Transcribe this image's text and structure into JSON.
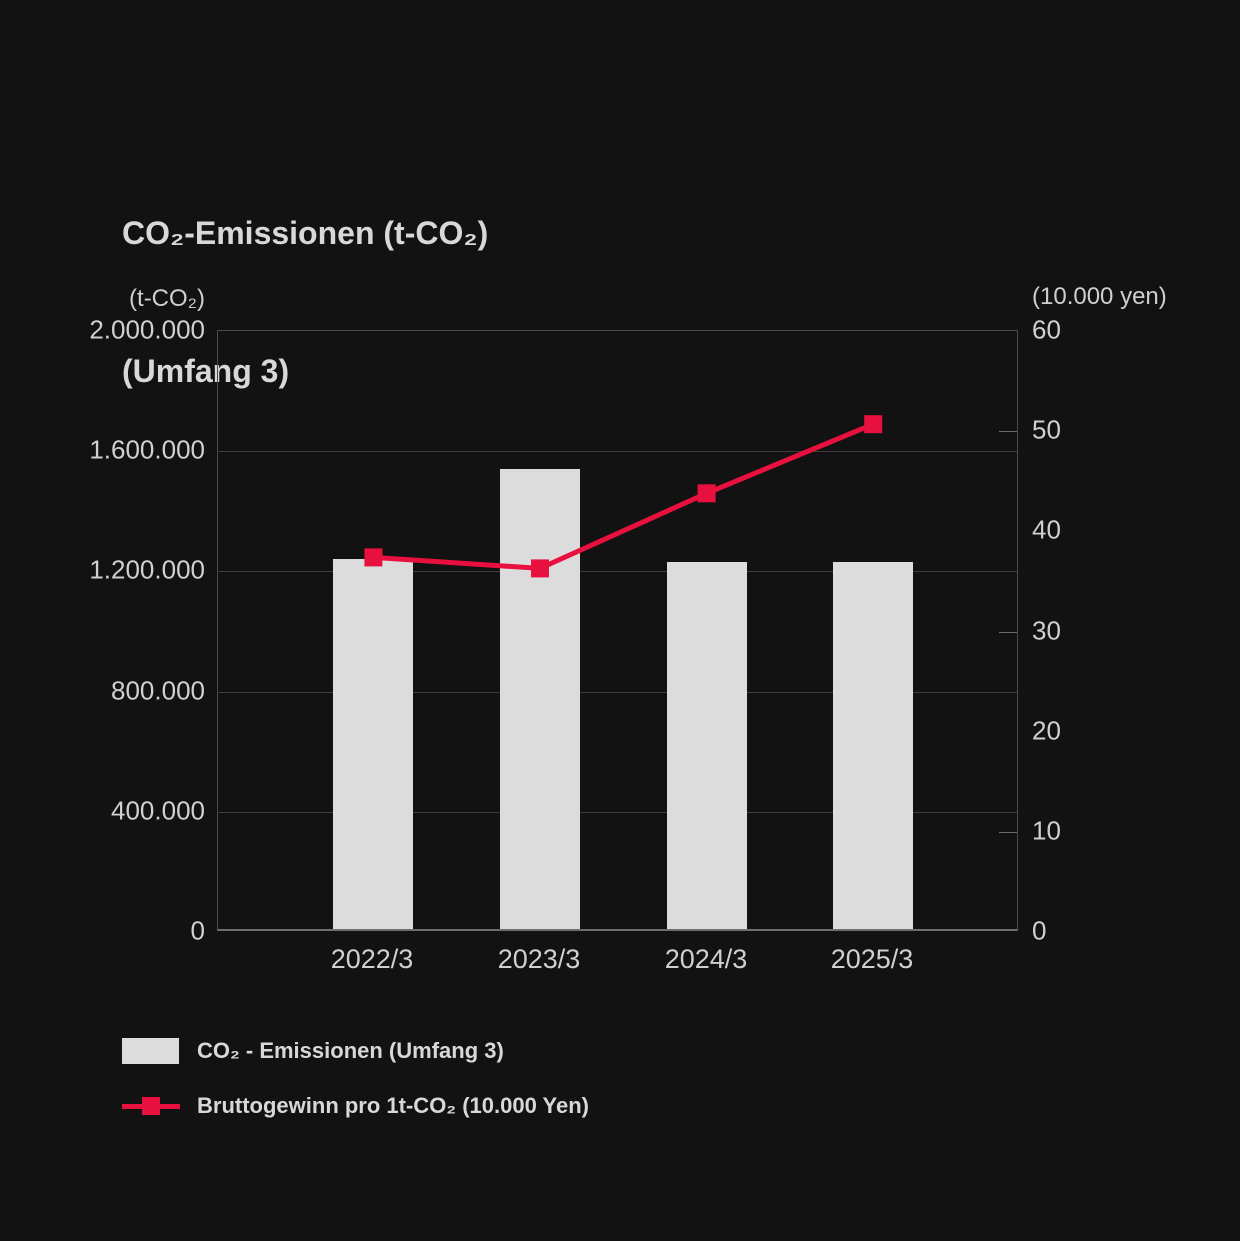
{
  "page": {
    "background": "#121212",
    "text_color": "#d4d4d4"
  },
  "title": {
    "line1": "CO₂-Emissionen (t-CO₂)",
    "line2": "(Umfang 3)"
  },
  "chart_data": {
    "type": "bar",
    "title": "CO₂-Emissionen (t-CO₂) (Umfang 3)",
    "categories": [
      "2022/3",
      "2023/3",
      "2024/3",
      "2025/3"
    ],
    "series": [
      {
        "name": "CO₂ - Emissionen (Umfang 3)",
        "type": "bar",
        "axis": "left",
        "values": [
          1230000,
          1530000,
          1220000,
          1220000
        ],
        "color": "#dcdcdc"
      },
      {
        "name": "Bruttogewinn pro 1t-CO₂ (10.000 Yen)",
        "type": "line",
        "axis": "right",
        "values": [
          37.4,
          36.3,
          43.8,
          50.7
        ],
        "color": "#e8103f",
        "marker": "square"
      }
    ],
    "left_axis": {
      "unit_label": "(t-CO₂)",
      "tick_labels": [
        "0",
        "400.000",
        "800.000",
        "1.200.000",
        "1.600.000",
        "2.000.000"
      ],
      "tick_values": [
        0,
        400000,
        800000,
        1200000,
        1600000,
        2000000
      ],
      "min": 0,
      "max": 2000000
    },
    "right_axis": {
      "unit_label": "(10.000 yen)",
      "tick_labels": [
        "0",
        "10",
        "20",
        "30",
        "40",
        "50",
        "60"
      ],
      "tick_values": [
        0,
        10,
        20,
        30,
        40,
        50,
        60
      ],
      "minor_tick_values": [
        10,
        30,
        50
      ],
      "min": 0,
      "max": 60
    },
    "grid": "horizontal gridlines at left-axis ticks",
    "legend_position": "bottom-left"
  },
  "legend": {
    "items": [
      {
        "swatch": "bar",
        "color": "#dcdcdc",
        "label": "CO₂ - Emissionen (Umfang 3)"
      },
      {
        "swatch": "line-with-square-marker",
        "color": "#e8103f",
        "label": "Bruttogewinn pro 1t-CO₂ (10.000 Yen)"
      }
    ]
  }
}
